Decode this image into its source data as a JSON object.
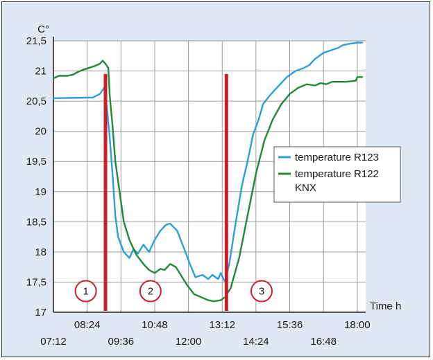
{
  "chart_data": {
    "type": "line",
    "y_unit": "C°",
    "x_unit": "Time h",
    "y_ticks": [
      "17",
      "17,5",
      "18",
      "18,5",
      "19",
      "19,5",
      "20",
      "20,5",
      "21",
      "21,5"
    ],
    "x_ticks_upper": [
      "08:24",
      "10:48",
      "13:12",
      "15:36",
      "18:00"
    ],
    "x_ticks_lower": [
      "07:12",
      "09:36",
      "12:00",
      "14:24",
      "16:48"
    ],
    "ylim": [
      17,
      21.5
    ],
    "xlim_hours": [
      7.2,
      18.3
    ],
    "grid": true,
    "legend_position": "right",
    "series": [
      {
        "name": "temperature R123",
        "color": "#2b9fd8",
        "points": [
          [
            7.2,
            20.55
          ],
          [
            8.6,
            20.56
          ],
          [
            8.85,
            20.62
          ],
          [
            9.0,
            20.72
          ],
          [
            9.1,
            20.4
          ],
          [
            9.2,
            19.9
          ],
          [
            9.3,
            19.3
          ],
          [
            9.4,
            18.6
          ],
          [
            9.5,
            18.25
          ],
          [
            9.7,
            18.0
          ],
          [
            9.9,
            17.9
          ],
          [
            10.05,
            18.05
          ],
          [
            10.2,
            17.97
          ],
          [
            10.4,
            18.12
          ],
          [
            10.6,
            18.0
          ],
          [
            10.8,
            18.2
          ],
          [
            11.0,
            18.35
          ],
          [
            11.2,
            18.45
          ],
          [
            11.35,
            18.47
          ],
          [
            11.6,
            18.35
          ],
          [
            11.85,
            18.05
          ],
          [
            12.05,
            17.8
          ],
          [
            12.25,
            17.58
          ],
          [
            12.5,
            17.62
          ],
          [
            12.7,
            17.55
          ],
          [
            12.85,
            17.62
          ],
          [
            13.05,
            17.55
          ],
          [
            13.15,
            17.65
          ],
          [
            13.3,
            17.5
          ],
          [
            13.45,
            17.8
          ],
          [
            13.65,
            18.4
          ],
          [
            13.9,
            19.1
          ],
          [
            14.1,
            19.5
          ],
          [
            14.3,
            19.95
          ],
          [
            14.5,
            20.2
          ],
          [
            14.65,
            20.45
          ],
          [
            14.9,
            20.6
          ],
          [
            15.2,
            20.75
          ],
          [
            15.5,
            20.9
          ],
          [
            15.8,
            21.0
          ],
          [
            16.1,
            21.05
          ],
          [
            16.3,
            21.1
          ],
          [
            16.5,
            21.2
          ],
          [
            16.8,
            21.3
          ],
          [
            17.1,
            21.35
          ],
          [
            17.3,
            21.38
          ],
          [
            17.5,
            21.43
          ],
          [
            17.7,
            21.45
          ],
          [
            18.0,
            21.47
          ],
          [
            18.2,
            21.47
          ]
        ]
      },
      {
        "name": "temperature R122 KNX",
        "color": "#1e8a3a",
        "points": [
          [
            7.2,
            20.88
          ],
          [
            7.4,
            20.92
          ],
          [
            7.7,
            20.92
          ],
          [
            7.9,
            20.94
          ],
          [
            8.05,
            20.98
          ],
          [
            8.25,
            21.02
          ],
          [
            8.45,
            21.05
          ],
          [
            8.65,
            21.08
          ],
          [
            8.85,
            21.12
          ],
          [
            8.95,
            21.17
          ],
          [
            9.05,
            21.12
          ],
          [
            9.15,
            21.05
          ],
          [
            9.2,
            20.6
          ],
          [
            9.3,
            20.1
          ],
          [
            9.4,
            19.5
          ],
          [
            9.55,
            19.0
          ],
          [
            9.7,
            18.5
          ],
          [
            9.9,
            18.2
          ],
          [
            10.15,
            17.95
          ],
          [
            10.4,
            17.8
          ],
          [
            10.6,
            17.7
          ],
          [
            10.8,
            17.65
          ],
          [
            11.0,
            17.72
          ],
          [
            11.15,
            17.7
          ],
          [
            11.35,
            17.8
          ],
          [
            11.55,
            17.75
          ],
          [
            11.75,
            17.6
          ],
          [
            11.95,
            17.45
          ],
          [
            12.2,
            17.3
          ],
          [
            12.45,
            17.25
          ],
          [
            12.7,
            17.2
          ],
          [
            12.9,
            17.18
          ],
          [
            13.15,
            17.2
          ],
          [
            13.3,
            17.25
          ],
          [
            13.5,
            17.4
          ],
          [
            13.8,
            17.9
          ],
          [
            14.1,
            18.6
          ],
          [
            14.4,
            19.3
          ],
          [
            14.7,
            19.85
          ],
          [
            15.0,
            20.2
          ],
          [
            15.3,
            20.45
          ],
          [
            15.6,
            20.62
          ],
          [
            15.9,
            20.72
          ],
          [
            16.2,
            20.78
          ],
          [
            16.5,
            20.76
          ],
          [
            16.7,
            20.8
          ],
          [
            16.9,
            20.78
          ],
          [
            17.1,
            20.82
          ],
          [
            17.6,
            20.82
          ],
          [
            17.95,
            20.84
          ],
          [
            18.0,
            20.9
          ],
          [
            18.2,
            20.9
          ]
        ]
      }
    ],
    "event_lines": [
      {
        "label": "1",
        "x": 9.05,
        "y_top": 20.95
      },
      {
        "label": "2",
        "x": 13.35,
        "y_top": 20.95
      },
      {
        "label": "3",
        "x": 13.35,
        "y_top": 20.95
      }
    ],
    "markers": [
      {
        "label": "1",
        "x": 8.35,
        "y": 17.35
      },
      {
        "label": "2",
        "x": 10.65,
        "y": 17.35
      },
      {
        "label": "3",
        "x": 14.6,
        "y": 17.35
      }
    ],
    "marker_color": "#cc1f2a"
  }
}
